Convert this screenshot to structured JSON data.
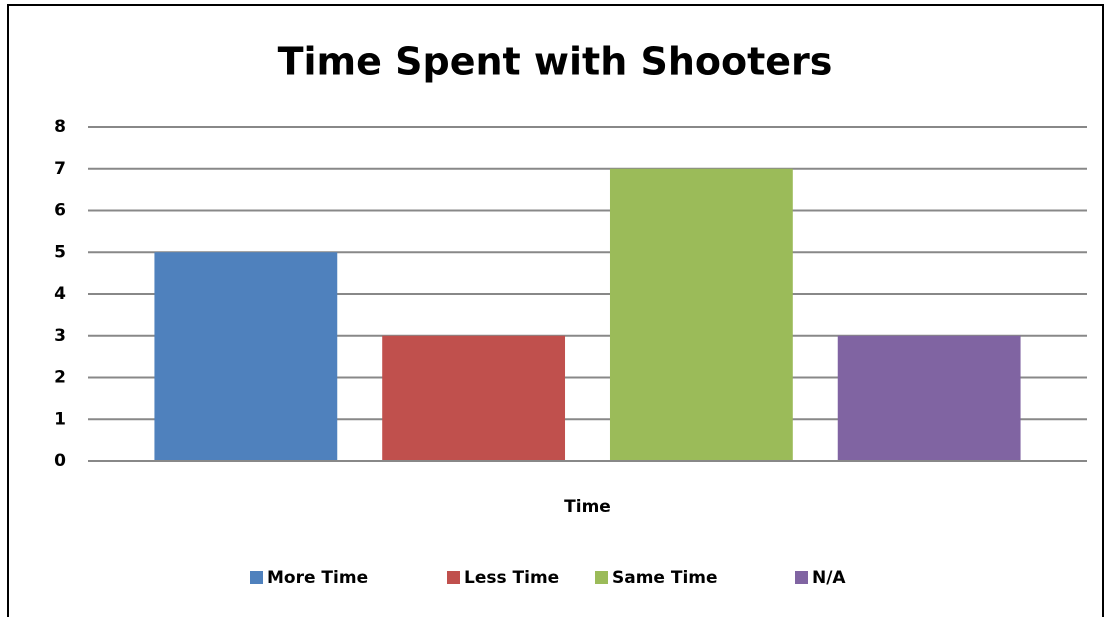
{
  "chart_data": {
    "type": "bar",
    "title": "Time Spent with Shooters",
    "categories": [
      "Time"
    ],
    "series": [
      {
        "name": "More Time",
        "color": "#4f81bd",
        "values": [
          5
        ]
      },
      {
        "name": "Less Time",
        "color": "#c0504d",
        "values": [
          3
        ]
      },
      {
        "name": "Same Time",
        "color": "#9bbb59",
        "values": [
          7
        ]
      },
      {
        "name": "N/A",
        "color": "#8064a2",
        "values": [
          3
        ]
      }
    ],
    "ylim": [
      0,
      8
    ],
    "yticks": [
      0,
      1,
      2,
      3,
      4,
      5,
      6,
      7,
      8
    ],
    "grid": true,
    "legend": "bottom"
  }
}
